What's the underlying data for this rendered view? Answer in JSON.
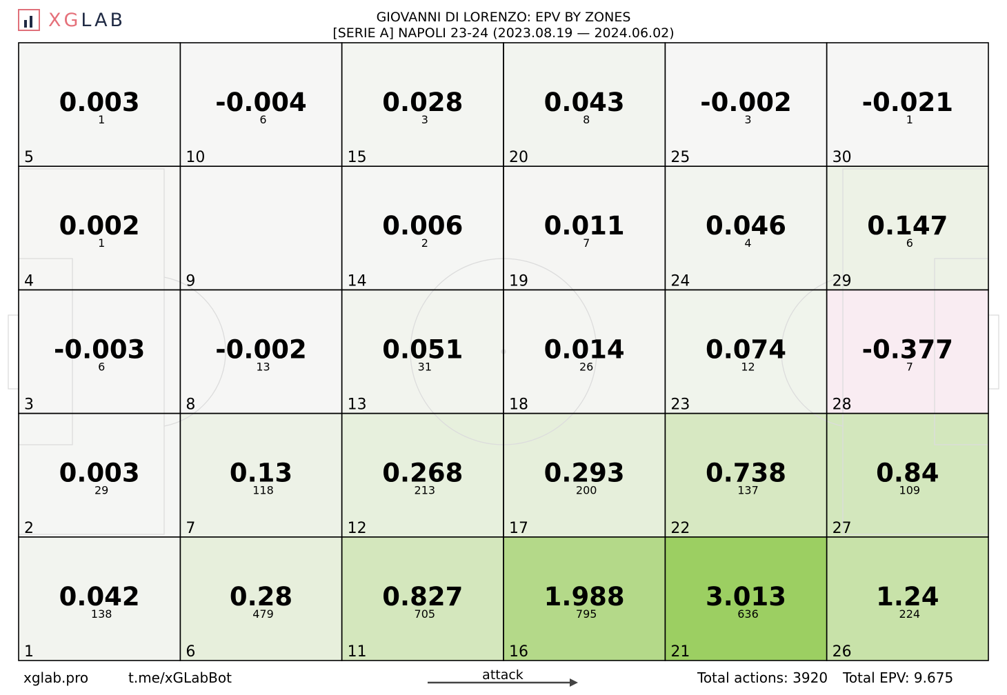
{
  "brand": {
    "logo_prefix": "XG",
    "logo_suffix": "LAB"
  },
  "header": {
    "title": "GIOVANNI DI LORENZO: EPV BY ZONES",
    "subtitle": "[SERIE A] NAPOLI 23-24 (2023.08.19 — 2024.06.02)"
  },
  "footer": {
    "site": "xglab.pro",
    "bot": "t.me/xGLabBot",
    "direction_label": "attack",
    "total_actions": "Total actions: 3920",
    "total_epv": "Total EPV: 9.675"
  },
  "chart_data": {
    "type": "heatmap",
    "title": "GIOVANNI DI LORENZO: EPV BY ZONES",
    "columns": 6,
    "rows": 5,
    "zones": [
      {
        "zone": 1,
        "epv": "0.042",
        "actions": "138"
      },
      {
        "zone": 2,
        "epv": "0.003",
        "actions": "29"
      },
      {
        "zone": 3,
        "epv": "-0.003",
        "actions": "6"
      },
      {
        "zone": 4,
        "epv": "0.002",
        "actions": "1"
      },
      {
        "zone": 5,
        "epv": "0.003",
        "actions": "1"
      },
      {
        "zone": 6,
        "epv": "0.28",
        "actions": "479"
      },
      {
        "zone": 7,
        "epv": "0.13",
        "actions": "118"
      },
      {
        "zone": 8,
        "epv": "-0.002",
        "actions": "13"
      },
      {
        "zone": 9,
        "epv": "",
        "actions": ""
      },
      {
        "zone": 10,
        "epv": "-0.004",
        "actions": "6"
      },
      {
        "zone": 11,
        "epv": "0.827",
        "actions": "705"
      },
      {
        "zone": 12,
        "epv": "0.268",
        "actions": "213"
      },
      {
        "zone": 13,
        "epv": "0.051",
        "actions": "31"
      },
      {
        "zone": 14,
        "epv": "0.006",
        "actions": "2"
      },
      {
        "zone": 15,
        "epv": "0.028",
        "actions": "3"
      },
      {
        "zone": 16,
        "epv": "1.988",
        "actions": "795"
      },
      {
        "zone": 17,
        "epv": "0.293",
        "actions": "200"
      },
      {
        "zone": 18,
        "epv": "0.014",
        "actions": "26"
      },
      {
        "zone": 19,
        "epv": "0.011",
        "actions": "7"
      },
      {
        "zone": 20,
        "epv": "0.043",
        "actions": "8"
      },
      {
        "zone": 21,
        "epv": "3.013",
        "actions": "636"
      },
      {
        "zone": 22,
        "epv": "0.738",
        "actions": "137"
      },
      {
        "zone": 23,
        "epv": "0.074",
        "actions": "12"
      },
      {
        "zone": 24,
        "epv": "0.046",
        "actions": "4"
      },
      {
        "zone": 25,
        "epv": "-0.002",
        "actions": "3"
      },
      {
        "zone": 26,
        "epv": "1.24",
        "actions": "224"
      },
      {
        "zone": 27,
        "epv": "0.84",
        "actions": "109"
      },
      {
        "zone": 28,
        "epv": "-0.377",
        "actions": "7"
      },
      {
        "zone": 29,
        "epv": "0.147",
        "actions": "6"
      },
      {
        "zone": 30,
        "epv": "-0.021",
        "actions": "1"
      }
    ],
    "colors": {
      "neutral": "#f6f6f5",
      "positive_max": "#9ccf62",
      "negative": "#f9ecf2",
      "grid": "#000000",
      "pitch_lines": "#dcdcdc"
    }
  }
}
